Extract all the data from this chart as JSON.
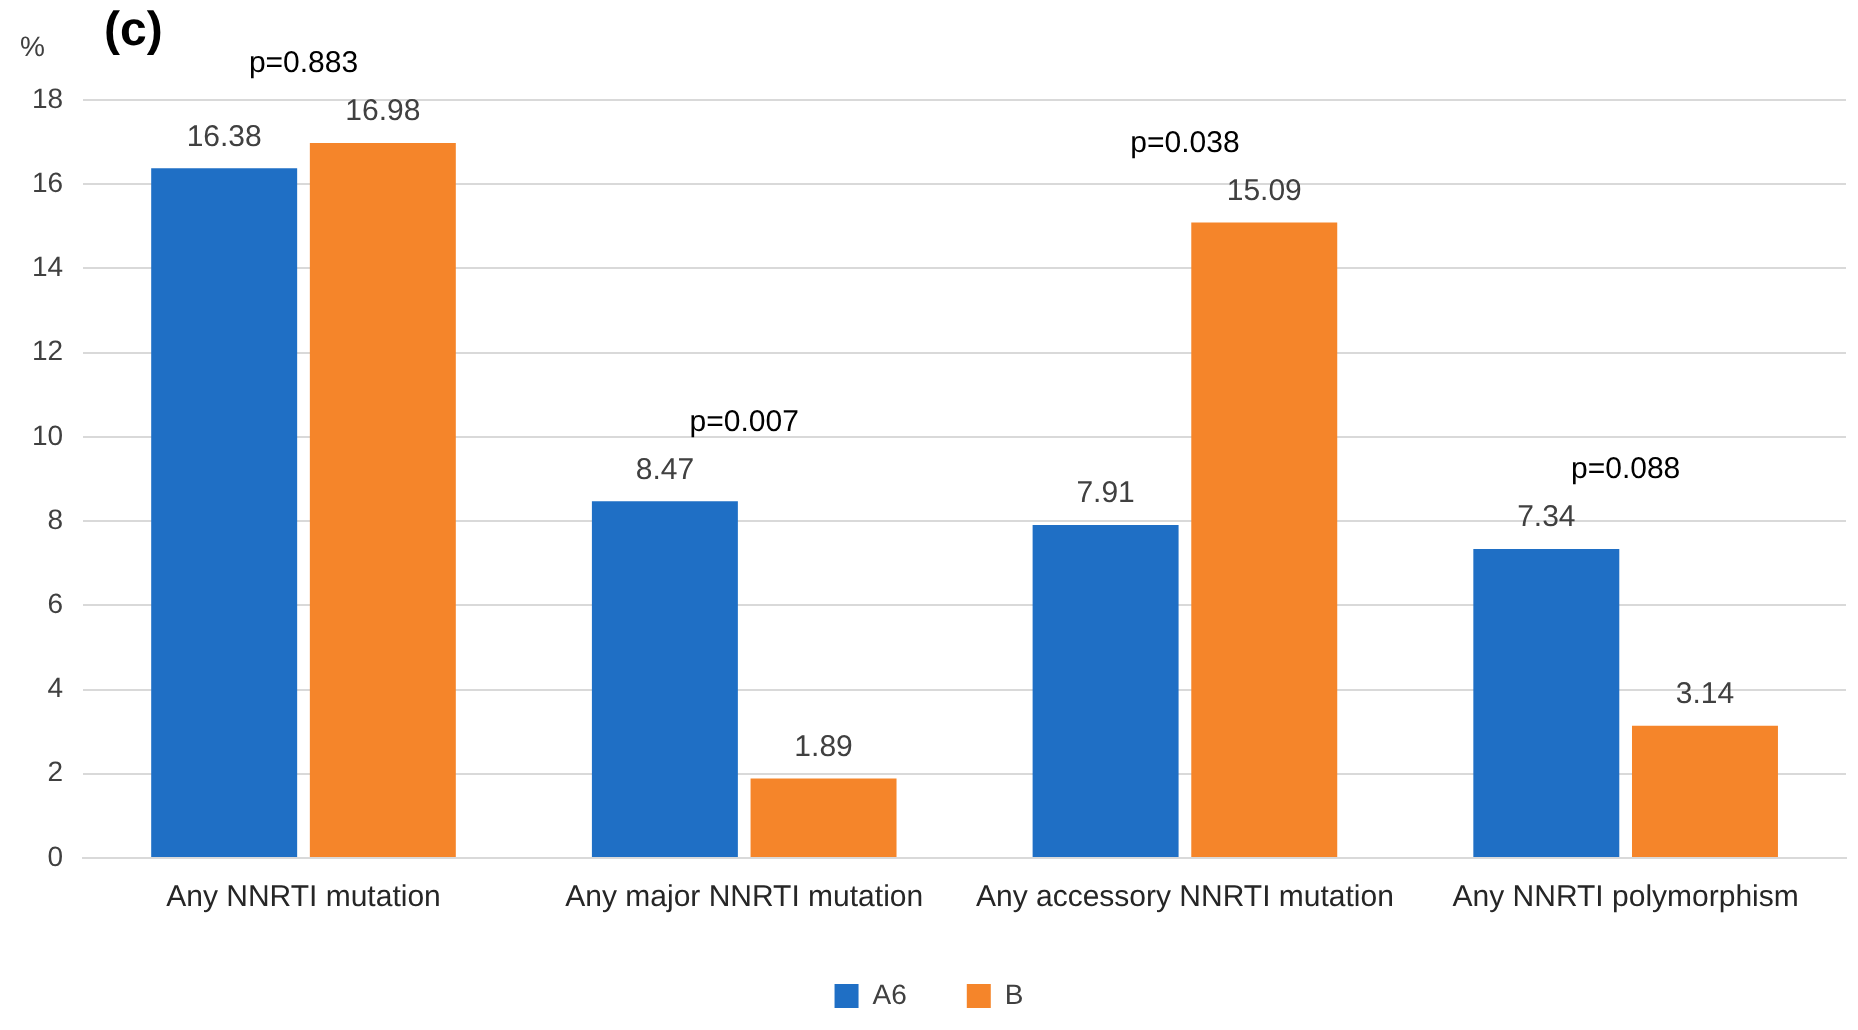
{
  "chart_data": {
    "type": "bar",
    "title": "(c)",
    "ylabel": "%",
    "categories": [
      "Any NNRTI mutation",
      "Any major NNRTI mutation",
      "Any accessory NNRTI mutation",
      "Any NNRTI polymorphism"
    ],
    "series": [
      {
        "name": "A6",
        "color": "#1f6fc5",
        "values": [
          16.38,
          8.47,
          7.91,
          7.34
        ]
      },
      {
        "name": "B",
        "color": "#f5852a",
        "values": [
          16.98,
          1.89,
          15.09,
          3.14
        ]
      }
    ],
    "ylim": [
      0,
      18
    ],
    "yticks": [
      0,
      2,
      4,
      6,
      8,
      10,
      12,
      14,
      16,
      18
    ],
    "grid": "y",
    "legend": "bottom",
    "data_labels": true,
    "annotations": [
      "p=0.883",
      "p=0.007",
      "p=0.038",
      "p=0.088"
    ]
  }
}
